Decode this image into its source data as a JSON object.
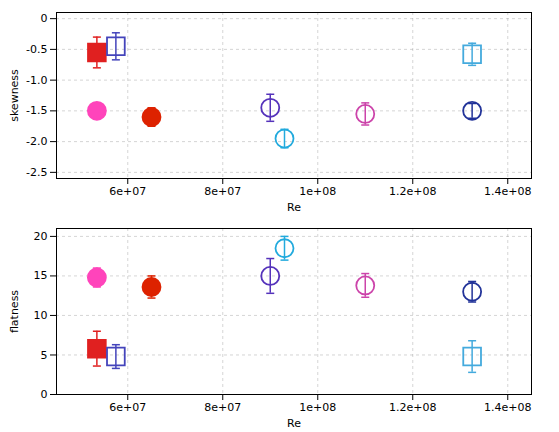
{
  "chart_data": [
    {
      "type": "scatter",
      "xlabel": "Re",
      "ylabel": "skewness",
      "xlim": [
        45000000,
        145000000
      ],
      "xticks": [
        {
          "value": 60000000,
          "label": "6e+07"
        },
        {
          "value": 80000000,
          "label": "8e+07"
        },
        {
          "value": 100000000,
          "label": "1e+08"
        },
        {
          "value": 120000000,
          "label": "1.2e+08"
        },
        {
          "value": 140000000,
          "label": "1.4e+08"
        }
      ],
      "ylim": [
        -2.6,
        0.1
      ],
      "yticks": [
        0,
        -0.5,
        {
          "value": -1.0,
          "label": "-1.0"
        },
        -1.5,
        {
          "value": -2.0,
          "label": "-2.0"
        },
        -2.5
      ],
      "grid": true,
      "series": [
        {
          "color": "#e02020",
          "marker": "square",
          "x": [
            53500000
          ],
          "values": [
            -0.55
          ],
          "yerr": [
            0.25
          ]
        },
        {
          "color": "#4444bb",
          "marker": "open_square",
          "x": [
            57500000
          ],
          "values": [
            -0.45
          ],
          "yerr": [
            0.22
          ]
        },
        {
          "color": "#44aadd",
          "marker": "open_square",
          "x": [
            132500000
          ],
          "values": [
            -0.58
          ],
          "yerr": [
            0.18
          ]
        },
        {
          "color": "#ff44bb",
          "marker": "circle",
          "x": [
            53500000
          ],
          "values": [
            -1.5
          ],
          "yerr": [
            0.12
          ]
        },
        {
          "color": "#dd2200",
          "marker": "circle",
          "x": [
            65000000
          ],
          "values": [
            -1.6
          ],
          "yerr": [
            0.15
          ]
        },
        {
          "color": "#5533bb",
          "marker": "open_circle",
          "x": [
            90000000
          ],
          "values": [
            -1.45
          ],
          "yerr": [
            0.22
          ]
        },
        {
          "color": "#22aadd",
          "marker": "open_circle",
          "x": [
            93000000
          ],
          "values": [
            -1.95
          ],
          "yerr": [
            0.15
          ]
        },
        {
          "color": "#cc44aa",
          "marker": "open_circle",
          "x": [
            110000000
          ],
          "values": [
            -1.55
          ],
          "yerr": [
            0.18
          ]
        },
        {
          "color": "#223399",
          "marker": "open_circle",
          "x": [
            132500000
          ],
          "values": [
            -1.5
          ],
          "yerr": [
            0.12
          ]
        }
      ]
    },
    {
      "type": "scatter",
      "xlabel": "Re",
      "ylabel": "flatness",
      "xlim": [
        45000000,
        145000000
      ],
      "xticks": [
        {
          "value": 60000000,
          "label": "6e+07"
        },
        {
          "value": 80000000,
          "label": "8e+07"
        },
        {
          "value": 100000000,
          "label": "1e+08"
        },
        {
          "value": 120000000,
          "label": "1.2e+08"
        },
        {
          "value": 140000000,
          "label": "1.4e+08"
        }
      ],
      "ylim": [
        0,
        21
      ],
      "yticks": [
        0,
        5,
        10,
        15,
        20
      ],
      "grid": true,
      "series": [
        {
          "color": "#e02020",
          "marker": "square",
          "x": [
            53500000
          ],
          "values": [
            5.8
          ],
          "yerr": [
            2.2
          ]
        },
        {
          "color": "#4444bb",
          "marker": "open_square",
          "x": [
            57500000
          ],
          "values": [
            4.8
          ],
          "yerr": [
            1.5
          ]
        },
        {
          "color": "#44aadd",
          "marker": "open_square",
          "x": [
            132500000
          ],
          "values": [
            4.8
          ],
          "yerr": [
            2.0
          ]
        },
        {
          "color": "#ff44bb",
          "marker": "circle",
          "x": [
            53500000
          ],
          "values": [
            14.8
          ],
          "yerr": [
            1.2
          ]
        },
        {
          "color": "#dd2200",
          "marker": "circle",
          "x": [
            65000000
          ],
          "values": [
            13.6
          ],
          "yerr": [
            1.4
          ]
        },
        {
          "color": "#5533bb",
          "marker": "open_circle",
          "x": [
            90000000
          ],
          "values": [
            15.0
          ],
          "yerr": [
            2.2
          ]
        },
        {
          "color": "#22aadd",
          "marker": "open_circle",
          "x": [
            93000000
          ],
          "values": [
            18.5
          ],
          "yerr": [
            1.5
          ]
        },
        {
          "color": "#cc44aa",
          "marker": "open_circle",
          "x": [
            110000000
          ],
          "values": [
            13.8
          ],
          "yerr": [
            1.5
          ]
        },
        {
          "color": "#223399",
          "marker": "open_circle",
          "x": [
            132500000
          ],
          "values": [
            13.0
          ],
          "yerr": [
            1.3
          ]
        }
      ]
    }
  ]
}
